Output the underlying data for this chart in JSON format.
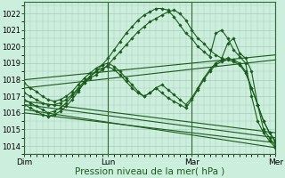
{
  "bg_color": "#cceedd",
  "grid_color": "#aaccbb",
  "line_color": "#1a5c1a",
  "marker_color": "#1a5c1a",
  "xlabel": "Pression niveau de la mer( hPa )",
  "xlabel_fontsize": 7.5,
  "ylim": [
    1013.5,
    1022.7
  ],
  "yticks": [
    1014,
    1015,
    1016,
    1017,
    1018,
    1019,
    1020,
    1021,
    1022
  ],
  "xtick_labels": [
    "Dim",
    "Lun",
    "Mar",
    "Mer"
  ],
  "xtick_positions": [
    0,
    28,
    56,
    84
  ],
  "vline_positions": [
    0,
    28,
    56,
    84
  ],
  "series": [
    {
      "x": [
        0,
        84
      ],
      "y": [
        1018.0,
        1019.5
      ],
      "markers": false
    },
    {
      "x": [
        0,
        84
      ],
      "y": [
        1017.5,
        1019.2
      ],
      "markers": false
    },
    {
      "x": [
        0,
        84
      ],
      "y": [
        1016.0,
        1014.2
      ],
      "markers": false
    },
    {
      "x": [
        0,
        84
      ],
      "y": [
        1016.2,
        1013.9
      ],
      "markers": false
    },
    {
      "x": [
        0,
        84
      ],
      "y": [
        1016.5,
        1014.5
      ],
      "markers": false
    },
    {
      "x": [
        0,
        84
      ],
      "y": [
        1016.7,
        1014.8
      ],
      "markers": false
    },
    {
      "x": [
        0,
        2,
        4,
        6,
        8,
        10,
        12,
        14,
        16,
        18,
        20,
        22,
        24,
        26,
        28,
        30,
        32,
        34,
        36,
        38,
        40,
        42,
        44,
        46,
        48,
        50,
        52,
        54,
        56,
        58,
        60,
        62,
        64,
        66,
        68,
        70,
        72,
        74,
        76,
        78,
        80,
        82,
        84
      ],
      "y": [
        1016.8,
        1016.6,
        1016.4,
        1016.2,
        1016.0,
        1016.1,
        1016.3,
        1016.6,
        1017.0,
        1017.4,
        1017.8,
        1018.1,
        1018.3,
        1018.6,
        1018.9,
        1019.3,
        1019.7,
        1020.1,
        1020.5,
        1020.9,
        1021.2,
        1021.5,
        1021.7,
        1021.9,
        1022.1,
        1022.2,
        1022.0,
        1021.6,
        1021.0,
        1020.5,
        1020.2,
        1019.8,
        1019.5,
        1019.3,
        1020.2,
        1020.5,
        1019.6,
        1019.3,
        1018.5,
        1016.5,
        1015.0,
        1014.5,
        1014.0
      ],
      "markers": true
    },
    {
      "x": [
        0,
        2,
        4,
        6,
        8,
        10,
        12,
        14,
        16,
        18,
        20,
        22,
        24,
        26,
        28,
        30,
        32,
        34,
        36,
        38,
        40,
        42,
        44,
        46,
        48,
        50,
        52,
        54,
        56,
        58,
        60,
        62,
        64,
        66,
        68,
        70,
        72,
        74,
        76,
        78,
        80,
        82,
        84
      ],
      "y": [
        1016.5,
        1016.3,
        1016.1,
        1015.9,
        1015.8,
        1015.9,
        1016.1,
        1016.4,
        1016.8,
        1017.3,
        1017.8,
        1018.2,
        1018.5,
        1018.9,
        1019.3,
        1019.8,
        1020.3,
        1020.8,
        1021.2,
        1021.6,
        1021.9,
        1022.1,
        1022.3,
        1022.3,
        1022.2,
        1021.8,
        1021.3,
        1020.8,
        1020.5,
        1020.0,
        1019.7,
        1019.4,
        1020.8,
        1021.0,
        1020.5,
        1019.8,
        1019.4,
        1019.0,
        1017.0,
        1015.5,
        1014.8,
        1014.3,
        1013.9
      ],
      "markers": true
    },
    {
      "x": [
        0,
        2,
        4,
        6,
        8,
        10,
        12,
        14,
        16,
        18,
        20,
        22,
        24,
        26,
        28,
        30,
        32,
        34,
        36,
        38,
        40,
        42,
        44,
        46,
        48,
        50,
        52,
        54,
        56,
        58,
        60,
        62,
        64,
        66,
        68,
        70,
        72,
        74,
        76,
        78,
        80,
        82,
        84
      ],
      "y": [
        1017.8,
        1017.5,
        1017.3,
        1017.0,
        1016.8,
        1016.7,
        1016.8,
        1017.0,
        1017.3,
        1017.7,
        1018.1,
        1018.4,
        1018.7,
        1018.9,
        1019.0,
        1018.8,
        1018.5,
        1018.1,
        1017.7,
        1017.3,
        1017.0,
        1017.2,
        1017.5,
        1017.7,
        1017.4,
        1017.1,
        1016.8,
        1016.5,
        1016.9,
        1017.5,
        1018.1,
        1018.6,
        1019.0,
        1019.2,
        1019.3,
        1019.2,
        1019.0,
        1018.5,
        1017.5,
        1016.5,
        1015.5,
        1014.8,
        1014.2
      ],
      "markers": true
    },
    {
      "x": [
        0,
        2,
        4,
        6,
        8,
        10,
        12,
        14,
        16,
        18,
        20,
        22,
        24,
        26,
        28,
        30,
        32,
        34,
        36,
        38,
        40,
        42,
        44,
        46,
        48,
        50,
        52,
        54,
        56,
        58,
        60,
        62,
        64,
        66,
        68,
        70,
        72,
        74,
        76,
        78,
        80,
        82,
        84
      ],
      "y": [
        1017.2,
        1017.0,
        1016.8,
        1016.6,
        1016.5,
        1016.5,
        1016.6,
        1016.8,
        1017.1,
        1017.5,
        1017.9,
        1018.2,
        1018.5,
        1018.7,
        1018.8,
        1018.6,
        1018.3,
        1017.9,
        1017.5,
        1017.2,
        1017.0,
        1017.2,
        1017.5,
        1017.2,
        1016.9,
        1016.7,
        1016.5,
        1016.3,
        1016.8,
        1017.4,
        1018.0,
        1018.5,
        1018.9,
        1019.1,
        1019.2,
        1019.1,
        1018.9,
        1018.4,
        1017.5,
        1016.5,
        1015.5,
        1014.8,
        1014.3
      ],
      "markers": true
    }
  ]
}
